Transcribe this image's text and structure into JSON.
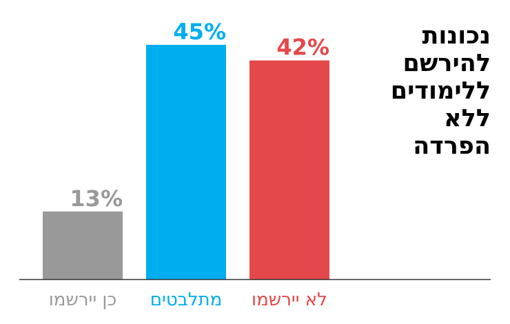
{
  "chart_data": {
    "type": "bar",
    "title": "נכונות להירשם ללימודים ללא הפרדה",
    "categories": [
      "כן יירשמו",
      "מתלבטים",
      "לא יירשמו"
    ],
    "values": [
      13,
      45,
      42
    ],
    "value_labels": [
      "13%",
      "45%",
      "42%"
    ],
    "colors": [
      "#999999",
      "#00aeef",
      "#e5484a"
    ],
    "xlabel": "",
    "ylabel": "",
    "ylim": [
      0,
      45
    ],
    "grid": false,
    "legend": "none"
  }
}
